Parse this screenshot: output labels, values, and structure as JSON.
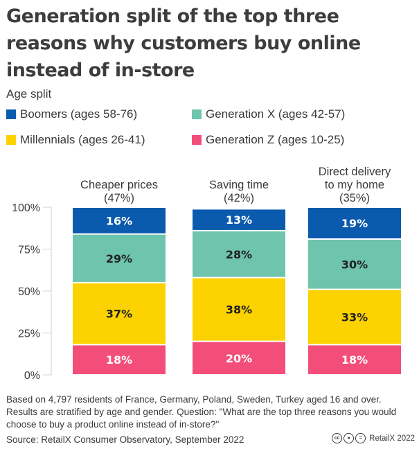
{
  "title": "Generation split of the top three reasons why customers buy online instead of in-store",
  "legend_title": "Age split",
  "legend": [
    {
      "label": "Boomers (ages 58-76)",
      "color": "#0a5aad"
    },
    {
      "label": "Generation X (ages 42-57)",
      "color": "#6ec4ad"
    },
    {
      "label": "Millennials (ages 26-41)",
      "color": "#fcd200"
    },
    {
      "label": "Generation Z (ages 10-25)",
      "color": "#f24e79"
    }
  ],
  "footnote": "Based on 4,797 residents of France, Germany, Poland, Sweden, Turkey aged 16 and over. Results are stratified by age and gender. Question: \"What are the top three reasons you would choose to buy a product online instead of in-store?\"",
  "source": "Source: RetailX Consumer Observatory, September 2022",
  "credit": "RetailX 2022",
  "credit_icons": [
    "cc-icon",
    "by-icon",
    "equals-icon"
  ],
  "chart_data": {
    "type": "bar",
    "stacked": true,
    "percent_stacked": true,
    "categories": [
      [
        "Cheaper prices",
        "(47%)"
      ],
      [
        "Saving time",
        "(42%)"
      ],
      [
        "Direct delivery",
        "to my home",
        "(35%)"
      ]
    ],
    "series": [
      {
        "name": "Generation Z (ages 10-25)",
        "color": "#f24e79",
        "values": [
          18,
          20,
          18
        ]
      },
      {
        "name": "Millennials (ages 26-41)",
        "color": "#fcd200",
        "values": [
          37,
          38,
          33
        ]
      },
      {
        "name": "Generation X (ages 42-57)",
        "color": "#6ec4ad",
        "values": [
          29,
          28,
          30
        ]
      },
      {
        "name": "Boomers (ages 58-76)",
        "color": "#0a5aad",
        "values": [
          16,
          13,
          19
        ]
      }
    ],
    "yticks": [
      "0%",
      "25%",
      "50%",
      "75%",
      "100%"
    ],
    "ylim": [
      0,
      100
    ]
  }
}
